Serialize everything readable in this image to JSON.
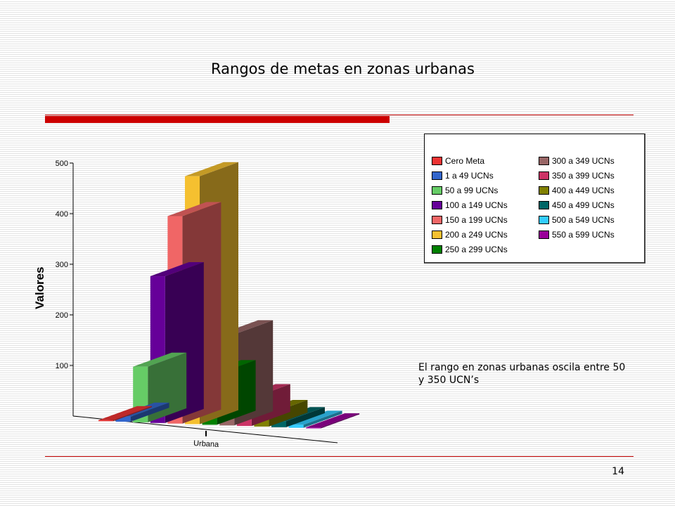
{
  "slide": {
    "title": "Rangos de metas en zonas urbanas",
    "note": "El rango en zonas urbanas oscila entre 50 y 350 UCN’s",
    "page_number": "14",
    "accent_color": "#cc0000"
  },
  "chart_data": {
    "type": "bar",
    "style": "3d-column",
    "title": "",
    "ylabel": "Valores",
    "xlabel": "",
    "categories": [
      "Urbana"
    ],
    "ylim": [
      0,
      500
    ],
    "yticks": [
      100,
      200,
      300,
      400,
      500
    ],
    "grid": false,
    "legend_position": "top-right",
    "series": [
      {
        "name": "Cero Meta",
        "color": "#ee3333",
        "values": [
          2
        ]
      },
      {
        "name": "1 a 49 UCNs",
        "color": "#3366cc",
        "values": [
          10
        ]
      },
      {
        "name": "50 a 99 UCNs",
        "color": "#66cc66",
        "values": [
          110
        ]
      },
      {
        "name": "100 a 149 UCNs",
        "color": "#660099",
        "values": [
          290
        ]
      },
      {
        "name": "150 a 199 UCNs",
        "color": "#f06666",
        "values": [
          410
        ]
      },
      {
        "name": "200 a 249 UCNs",
        "color": "#f5c030",
        "values": [
          490
        ]
      },
      {
        "name": "250 a 299 UCNs",
        "color": "#008000",
        "values": [
          100
        ]
      },
      {
        "name": "300 a 349 UCNs",
        "color": "#996666",
        "values": [
          180
        ]
      },
      {
        "name": "350 a 399 UCNs",
        "color": "#cc3366",
        "values": [
          55
        ]
      },
      {
        "name": "400 a 449 UCNs",
        "color": "#808000",
        "values": [
          25
        ]
      },
      {
        "name": "450 a 499 UCNs",
        "color": "#006666",
        "values": [
          12
        ]
      },
      {
        "name": "500 a 549 UCNs",
        "color": "#33ccff",
        "values": [
          6
        ]
      },
      {
        "name": "550 a 599 UCNs",
        "color": "#990099",
        "values": [
          2
        ]
      }
    ]
  }
}
